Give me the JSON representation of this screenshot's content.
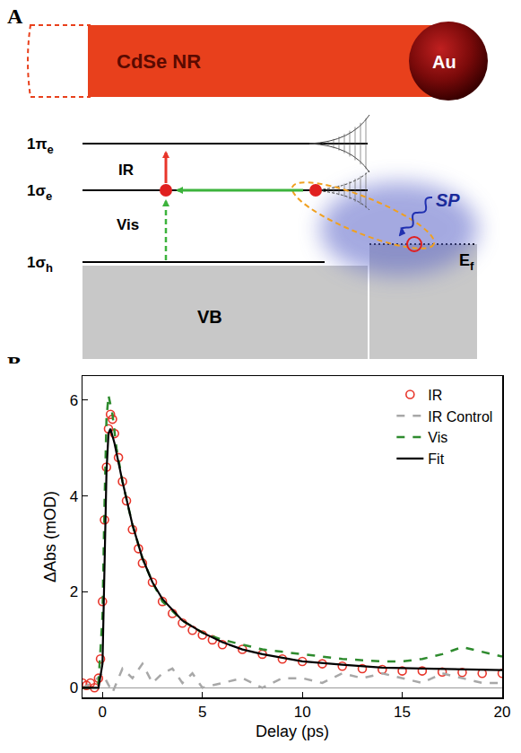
{
  "diagram": {
    "panel": "A",
    "rod": "CdSe NR",
    "particle": "Au",
    "levels": [
      {
        "base": "1π",
        "sub": "e"
      },
      {
        "base": "1σ",
        "sub": "e"
      },
      {
        "base": "1σ",
        "sub": "h"
      }
    ],
    "band": "VB",
    "fermi": {
      "base": "E",
      "sub": "f"
    },
    "transitions": [
      "IR",
      "Vis"
    ],
    "plasmon": "SP"
  },
  "chart_data": {
    "panel": "B",
    "type": "line",
    "x_label": "Delay (ps)",
    "y_label": "ΔAbs (mOD)",
    "xlim": [
      -1,
      20
    ],
    "xticks": [
      0,
      5,
      10,
      15,
      20
    ],
    "ylim": [
      -0.2,
      6.5
    ],
    "yticks": [
      0,
      2,
      4,
      6
    ],
    "grid": false,
    "legend": "upper right",
    "series": [
      {
        "name": "IR",
        "type": "scatter",
        "marker": "open_circle",
        "color": "#e8352a",
        "x": [
          -1,
          -0.8,
          -0.6,
          -0.4,
          -0.2,
          -0.1,
          0,
          0.1,
          0.2,
          0.3,
          0.4,
          0.5,
          0.6,
          0.8,
          1,
          1.2,
          1.5,
          1.8,
          2,
          2.5,
          3,
          3.5,
          4,
          4.5,
          5,
          5.5,
          6,
          7,
          8,
          9,
          10,
          11,
          12,
          13,
          14,
          15,
          16,
          17,
          18,
          19,
          20
        ],
        "values": [
          0.1,
          0.05,
          0.1,
          0.0,
          0.2,
          0.6,
          1.8,
          3.5,
          4.6,
          5.4,
          5.7,
          5.6,
          5.3,
          4.8,
          4.3,
          3.9,
          3.3,
          2.9,
          2.6,
          2.2,
          1.8,
          1.55,
          1.35,
          1.2,
          1.1,
          1.0,
          0.9,
          0.8,
          0.7,
          0.6,
          0.55,
          0.5,
          0.45,
          0.4,
          0.38,
          0.35,
          0.35,
          0.33,
          0.32,
          0.3,
          0.3
        ]
      },
      {
        "name": "IR Control",
        "type": "line",
        "line_style": "dashed",
        "color": "#a8a8a8",
        "x": [
          -1,
          -0.5,
          0,
          0.5,
          1,
          1.5,
          2,
          2.5,
          3,
          3.5,
          4,
          4.5,
          5,
          6,
          7,
          8,
          9,
          10,
          11,
          12,
          13,
          14,
          15,
          16,
          17,
          18,
          19,
          20
        ],
        "values": [
          0,
          0.1,
          0.3,
          -0.1,
          0.4,
          0.2,
          0.5,
          0.1,
          0.3,
          0.4,
          0.1,
          0.3,
          0,
          0.1,
          0.2,
          0,
          0.2,
          0.2,
          0.1,
          0.3,
          0.2,
          0.3,
          0.2,
          0.1,
          0.3,
          0.2,
          0.1,
          0.1
        ]
      },
      {
        "name": "Vis",
        "type": "line",
        "line_style": "dashed",
        "color": "#2e8b2e",
        "x": [
          -1,
          -0.5,
          -0.2,
          0,
          0.1,
          0.2,
          0.3,
          0.5,
          0.7,
          1,
          1.5,
          2,
          2.5,
          3,
          4,
          5,
          6,
          7,
          8,
          10,
          12,
          14,
          15,
          16,
          17,
          18,
          19,
          20
        ],
        "values": [
          0,
          0,
          0.1,
          1.5,
          3.8,
          5.6,
          6.1,
          5.7,
          5.0,
          4.3,
          3.4,
          2.7,
          2.2,
          1.8,
          1.4,
          1.15,
          1.0,
          0.9,
          0.8,
          0.7,
          0.6,
          0.55,
          0.55,
          0.6,
          0.7,
          0.85,
          0.75,
          0.65
        ]
      },
      {
        "name": "Fit",
        "type": "line",
        "line_style": "solid",
        "color": "#000000",
        "x": [
          -1,
          -0.2,
          0,
          0.1,
          0.2,
          0.3,
          0.4,
          0.6,
          0.8,
          1,
          1.5,
          2,
          2.5,
          3,
          4,
          5,
          6,
          7,
          8,
          10,
          12,
          14,
          16,
          18,
          20
        ],
        "values": [
          0,
          0,
          0.5,
          2.5,
          4.5,
          5.3,
          5.4,
          5.1,
          4.7,
          4.3,
          3.4,
          2.7,
          2.2,
          1.85,
          1.4,
          1.15,
          0.95,
          0.8,
          0.7,
          0.55,
          0.48,
          0.42,
          0.4,
          0.38,
          0.37
        ]
      }
    ]
  }
}
